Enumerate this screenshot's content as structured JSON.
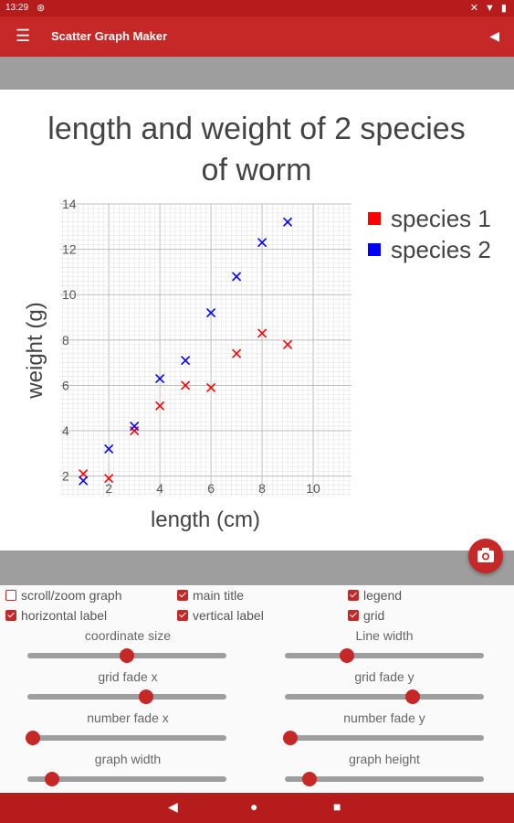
{
  "status_bar": {
    "time": "13:29",
    "notif_icon": "notification-icon",
    "icons": "✕ ▼ ▮"
  },
  "app_bar": {
    "title": "Scatter Graph Maker",
    "menu_icon": "☰",
    "back_icon": "◀"
  },
  "chart_data": {
    "type": "scatter",
    "title": "length and weight of 2 species of worm",
    "title_lines": [
      "length and weight of 2 species",
      "of worm"
    ],
    "xlabel": "length (cm)",
    "ylabel": "weight (g)",
    "xlim": [
      0.1,
      11.5
    ],
    "ylim": [
      1.1,
      14
    ],
    "x_ticks": [
      2,
      4,
      6,
      8,
      10
    ],
    "y_ticks": [
      2,
      4,
      6,
      8,
      10,
      12,
      14
    ],
    "grid": true,
    "legend_position": "top-right",
    "series": [
      {
        "name": "species 1",
        "color": "#ff0000",
        "x": [
          1,
          2,
          3,
          4,
          5,
          6,
          7,
          8,
          9
        ],
        "y": [
          2.1,
          1.9,
          4.0,
          5.1,
          6.0,
          5.9,
          7.4,
          8.3,
          7.8
        ]
      },
      {
        "name": "species 2",
        "color": "#0000ff",
        "x": [
          1,
          2,
          3,
          4,
          5,
          6,
          7,
          8,
          9
        ],
        "y": [
          1.8,
          3.2,
          4.2,
          6.3,
          7.1,
          9.2,
          10.8,
          12.3,
          13.2
        ]
      }
    ]
  },
  "controls": {
    "checkboxes": [
      {
        "label": "scroll/zoom graph",
        "checked": false
      },
      {
        "label": "main title",
        "checked": true
      },
      {
        "label": "legend",
        "checked": true
      },
      {
        "label": "horizontal label",
        "checked": true
      },
      {
        "label": "vertical label",
        "checked": true
      },
      {
        "label": "grid",
        "checked": true
      }
    ],
    "sliders": [
      {
        "label": "coordinate size",
        "value": 0.5
      },
      {
        "label": "Line width",
        "value": 0.3
      },
      {
        "label": "grid fade x",
        "value": 0.6
      },
      {
        "label": "grid fade y",
        "value": 0.65
      },
      {
        "label": "number fade x",
        "value": 0.0
      },
      {
        "label": "number fade y",
        "value": 0.0
      },
      {
        "label": "graph width",
        "value": 0.1
      },
      {
        "label": "graph height",
        "value": 0.1
      }
    ]
  },
  "nav_bar": {
    "back": "◀",
    "home": "●",
    "recents": "■"
  }
}
